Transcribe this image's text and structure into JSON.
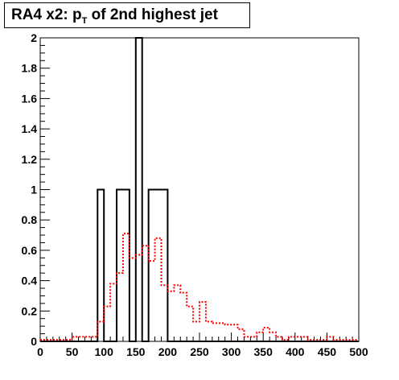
{
  "chart_data": {
    "type": "line",
    "title_main": "RA4 x2: p",
    "title_sub": "T",
    "title_rest": " of 2nd highest jet",
    "xlim": [
      0,
      500
    ],
    "ylim": [
      0,
      2
    ],
    "x_ticks": [
      0,
      50,
      100,
      150,
      200,
      250,
      300,
      350,
      400,
      450,
      500
    ],
    "y_ticks": [
      0,
      0.2,
      0.4,
      0.6,
      0.8,
      1,
      1.2,
      1.4,
      1.6,
      1.8,
      2
    ],
    "bin_width": 10,
    "series": [
      {
        "style": "solid",
        "color": "#000000",
        "values": [
          0,
          0,
          0,
          0,
          0,
          0,
          0,
          0,
          0,
          1.0,
          0,
          0,
          1.0,
          1.0,
          0,
          2.0,
          0,
          1.0,
          1.0,
          1.0,
          0,
          0,
          0,
          0,
          0,
          0,
          0,
          0,
          0,
          0,
          0,
          0,
          0,
          0,
          0,
          0,
          0,
          0,
          0,
          0,
          0,
          0,
          0,
          0,
          0,
          0,
          0,
          0,
          0,
          0
        ]
      },
      {
        "style": "dotted",
        "color": "#ff0000",
        "values": [
          0.01,
          0.01,
          0.01,
          0.01,
          0.01,
          0.03,
          0.03,
          0.03,
          0.03,
          0.13,
          0.23,
          0.38,
          0.45,
          0.71,
          0.55,
          0.57,
          0.63,
          0.53,
          0.68,
          0.37,
          0.33,
          0.37,
          0.32,
          0.23,
          0.13,
          0.26,
          0.13,
          0.12,
          0.12,
          0.11,
          0.11,
          0.08,
          0.03,
          0.03,
          0.06,
          0.09,
          0.06,
          0.03,
          0.01,
          0.03,
          0.03,
          0.03,
          0.01,
          0.01,
          0.01,
          0.03,
          0.01,
          0.01,
          0.01,
          0.01
        ]
      }
    ]
  }
}
